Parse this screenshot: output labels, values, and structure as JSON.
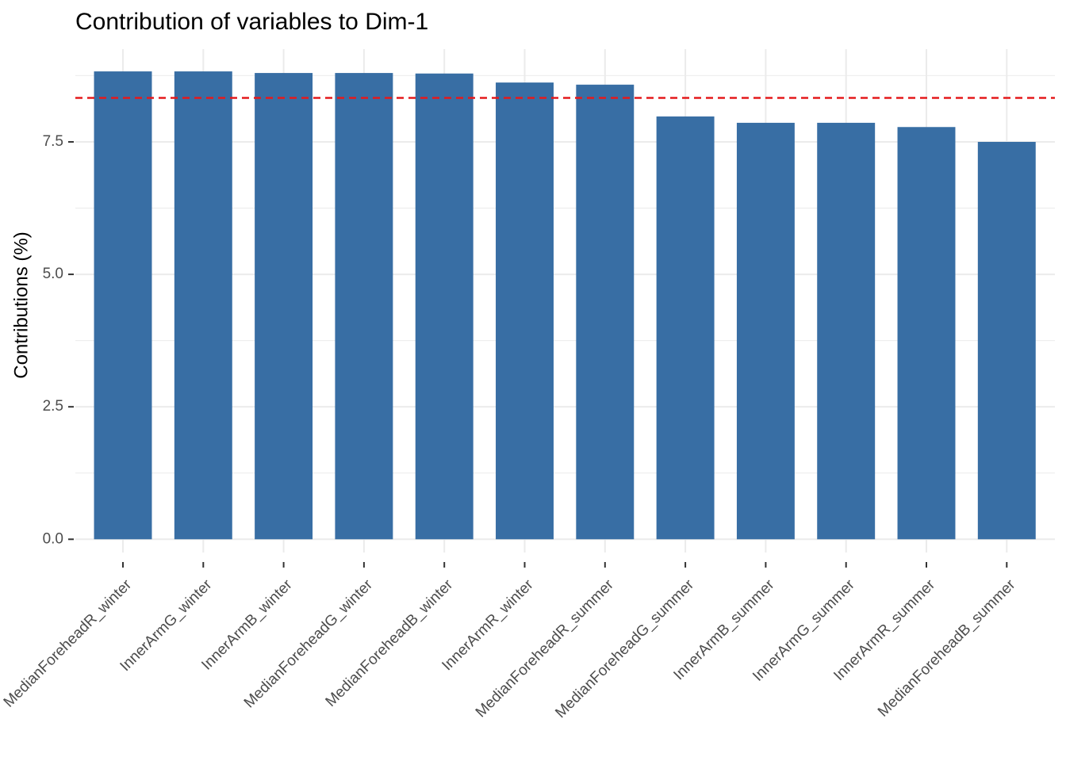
{
  "chart_data": {
    "type": "bar",
    "title": "Contribution of variables to Dim-1",
    "y_label": "Contributions (%)",
    "categories": [
      "MedianForeheadR_winter",
      "InnerArmG_winter",
      "InnerArmB_winter",
      "MedianForeheadG_winter",
      "MedianForeheadB_winter",
      "InnerArmR_winter",
      "MedianForeheadR_summer",
      "MedianForeheadG_summer",
      "InnerArmB_summer",
      "InnerArmG_summer",
      "InnerArmR_summer",
      "MedianForeheadB_summer"
    ],
    "values": [
      8.83,
      8.83,
      8.8,
      8.8,
      8.79,
      8.62,
      8.58,
      7.98,
      7.86,
      7.86,
      7.78,
      7.5
    ],
    "color": "#386ea4",
    "ylim": [
      -0.25,
      9.25
    ],
    "yticks": [
      {
        "value": 0,
        "label": "0.0"
      },
      2.5,
      {
        "value": 5,
        "label": "5.0"
      },
      7.5
    ],
    "grid": true,
    "reference_line": {
      "value": 8.33,
      "color": "#e41a1c"
    }
  }
}
